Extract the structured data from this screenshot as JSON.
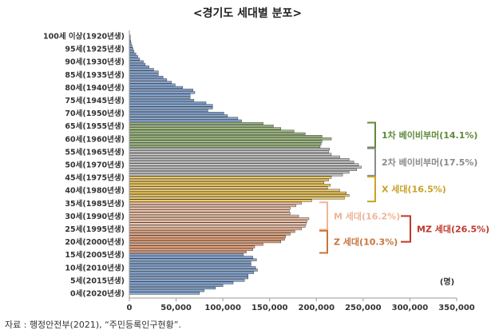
{
  "chart_data": {
    "type": "bar",
    "orientation": "horizontal",
    "title": "<경기도 세대별 분포>",
    "unit_label": "(명)",
    "xlim": [
      0,
      350000
    ],
    "xticks": [
      "0",
      "50,000",
      "100,000",
      "150,000",
      "200,000",
      "250,000",
      "300,000",
      "350,000"
    ],
    "xtick_values": [
      0,
      50000,
      100000,
      150000,
      200000,
      250000,
      300000,
      350000
    ],
    "yticks": [
      {
        "age": 100,
        "label": "100세 이상(1920년생)"
      },
      {
        "age": 95,
        "label": "95세(1925년생)"
      },
      {
        "age": 90,
        "label": "90세(1930년생)"
      },
      {
        "age": 85,
        "label": "85세(1935년생)"
      },
      {
        "age": 80,
        "label": "80세(1940년생)"
      },
      {
        "age": 75,
        "label": "75세(1945년생)"
      },
      {
        "age": 70,
        "label": "70세(1950년생)"
      },
      {
        "age": 65,
        "label": "65세(1955년생)"
      },
      {
        "age": 60,
        "label": "60세(1960년생)"
      },
      {
        "age": 55,
        "label": "55세(1965년생)"
      },
      {
        "age": 50,
        "label": "50세(1970년생)"
      },
      {
        "age": 45,
        "label": "45세(1975년생)"
      },
      {
        "age": 40,
        "label": "40세(1980년생)"
      },
      {
        "age": 35,
        "label": "35세(1985년생)"
      },
      {
        "age": 30,
        "label": "30세(1990년생)"
      },
      {
        "age": 25,
        "label": "25세(1995년생)"
      },
      {
        "age": 20,
        "label": "20세(2000년생)"
      },
      {
        "age": 15,
        "label": "15세(2005년생)"
      },
      {
        "age": 10,
        "label": "10세(2010년생)"
      },
      {
        "age": 5,
        "label": "5세(2015년생)"
      },
      {
        "age": 0,
        "label": "0세(2020년생)"
      }
    ],
    "ages": [
      0,
      1,
      2,
      3,
      4,
      5,
      6,
      7,
      8,
      9,
      10,
      11,
      12,
      13,
      14,
      15,
      16,
      17,
      18,
      19,
      20,
      21,
      22,
      23,
      24,
      25,
      26,
      27,
      28,
      29,
      30,
      31,
      32,
      33,
      34,
      35,
      36,
      37,
      38,
      39,
      40,
      41,
      42,
      43,
      44,
      45,
      46,
      47,
      48,
      49,
      50,
      51,
      52,
      53,
      54,
      55,
      56,
      57,
      58,
      59,
      60,
      61,
      62,
      63,
      64,
      65,
      66,
      67,
      68,
      69,
      70,
      71,
      72,
      73,
      74,
      75,
      76,
      77,
      78,
      79,
      80,
      81,
      82,
      83,
      84,
      85,
      86,
      87,
      88,
      89,
      90,
      91,
      92,
      93,
      94,
      95,
      96,
      97,
      98,
      99,
      100
    ],
    "values": [
      75000,
      80000,
      92000,
      100000,
      111000,
      123000,
      127000,
      127000,
      133000,
      137000,
      135000,
      130000,
      130000,
      136000,
      132000,
      122000,
      125000,
      132000,
      134000,
      143000,
      162000,
      166000,
      167000,
      172000,
      177000,
      184000,
      188000,
      189000,
      190000,
      192000,
      181000,
      172000,
      171000,
      172000,
      178000,
      184000,
      195000,
      230000,
      235000,
      232000,
      225000,
      212000,
      215000,
      208000,
      213000,
      216000,
      228000,
      235000,
      243000,
      248000,
      245000,
      240000,
      235000,
      225000,
      216000,
      213000,
      214000,
      204000,
      205000,
      206000,
      216000,
      206000,
      188000,
      176000,
      162000,
      154000,
      143000,
      120000,
      116000,
      105000,
      101000,
      84000,
      89000,
      89000,
      82000,
      69000,
      65000,
      65000,
      70000,
      68000,
      57000,
      49000,
      45000,
      40000,
      36000,
      31000,
      31000,
      26000,
      21000,
      17000,
      15000,
      11000,
      9000,
      7000,
      5000,
      4000,
      3000,
      2000,
      1500,
      1000,
      1000
    ],
    "groups": [
      {
        "name": "1차 베이비부머(14.1%)",
        "age_from": 57,
        "age_to": 66,
        "color": "#9dbb7d",
        "label_color": "#5f8a3a"
      },
      {
        "name": "2차 베이비부머(17.5%)",
        "age_from": 46,
        "age_to": 56,
        "color": "#c4c4c4",
        "label_color": "#8a8a8a"
      },
      {
        "name": "X 세대(16.5%)",
        "age_from": 36,
        "age_to": 45,
        "color": "#f3cc5f",
        "label_color": "#c9a227"
      },
      {
        "name": "M 세대(16.2%)",
        "age_from": 25,
        "age_to": 35,
        "color": "#f5c5aa",
        "label_color": "#f0b49a"
      },
      {
        "name": "Z 세대(10.3%)",
        "age_from": 16,
        "age_to": 24,
        "color": "#e9a37c",
        "label_color": "#c8743a"
      }
    ],
    "combined_group": {
      "name": "MZ 세대(26.5%)",
      "color": "#c0392b"
    },
    "default_bar_color": "#84a7d6",
    "grid": false
  },
  "source": "자료 : 행정안전부(2021), “주민등록인구현황”."
}
